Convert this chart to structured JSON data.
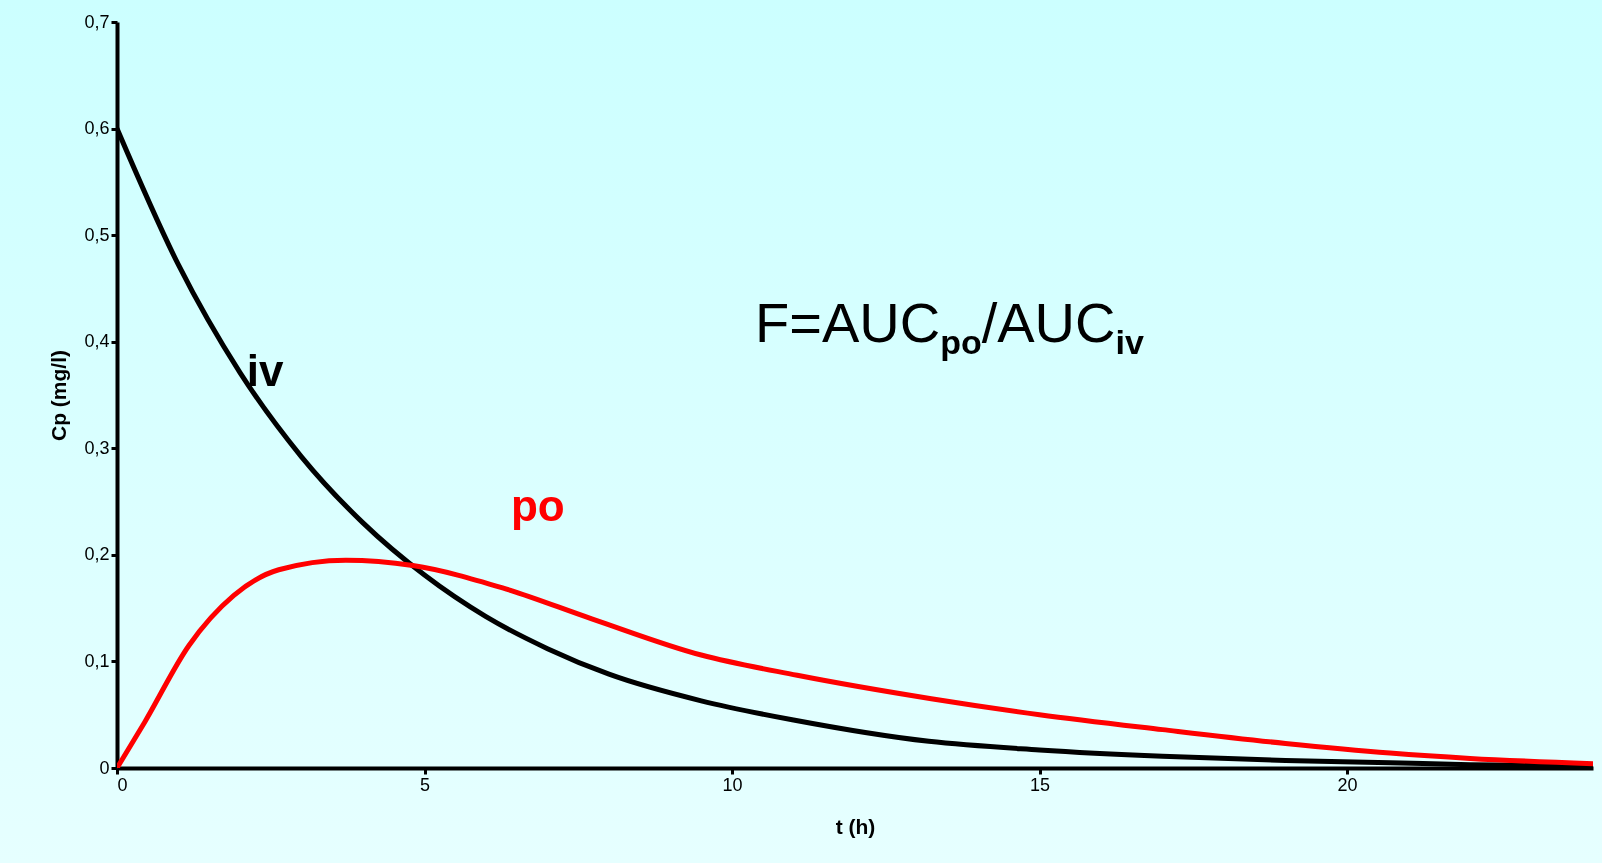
{
  "chart_data": {
    "type": "line",
    "xlabel": "t (h)",
    "ylabel": "Cp (mg/l)",
    "xlim": [
      0,
      24
    ],
    "xticks": [
      0,
      5,
      10,
      15,
      20
    ],
    "ylim": [
      0,
      0.7
    ],
    "yticks": [
      0,
      {
        "value": 0.1,
        "label": "0,1"
      },
      {
        "value": 0.2,
        "label": "0,2"
      },
      {
        "value": 0.3,
        "label": "0,3"
      },
      {
        "value": 0.4,
        "label": "0,4"
      },
      {
        "value": 0.5,
        "label": "0,5"
      },
      {
        "value": 0.6,
        "label": "0,6"
      },
      {
        "value": 0.7,
        "label": "0,7"
      }
    ],
    "series": [
      {
        "name": "iv",
        "color": "#000000",
        "x": [
          0,
          1,
          2,
          3,
          4,
          5,
          6,
          7,
          8,
          9.5,
          11,
          13.2,
          15,
          17,
          19,
          20.7,
          22,
          24
        ],
        "values": [
          0.6,
          0.472,
          0.371,
          0.292,
          0.23,
          0.181,
          0.142,
          0.112,
          0.088,
          0.063,
          0.045,
          0.025,
          0.017,
          0.011,
          0.007,
          0.005,
          0.003,
          0.002
        ]
      },
      {
        "name": "po",
        "color": "#ff0000",
        "x": [
          0,
          0.45,
          1.17,
          1.9,
          2.63,
          3.72,
          4.81,
          6.27,
          7.72,
          9.5,
          11.06,
          13.24,
          15,
          17,
          19,
          20.7,
          22,
          24
        ],
        "values": [
          0,
          0.043,
          0.115,
          0.162,
          0.186,
          0.195,
          0.19,
          0.169,
          0.14,
          0.106,
          0.087,
          0.065,
          0.05,
          0.036,
          0.023,
          0.014,
          0.009,
          0.004
        ]
      }
    ],
    "annotations": [
      "F=AUC$_{po}$/AUC$_{iv}$"
    ],
    "grid": false,
    "legend": false
  }
}
